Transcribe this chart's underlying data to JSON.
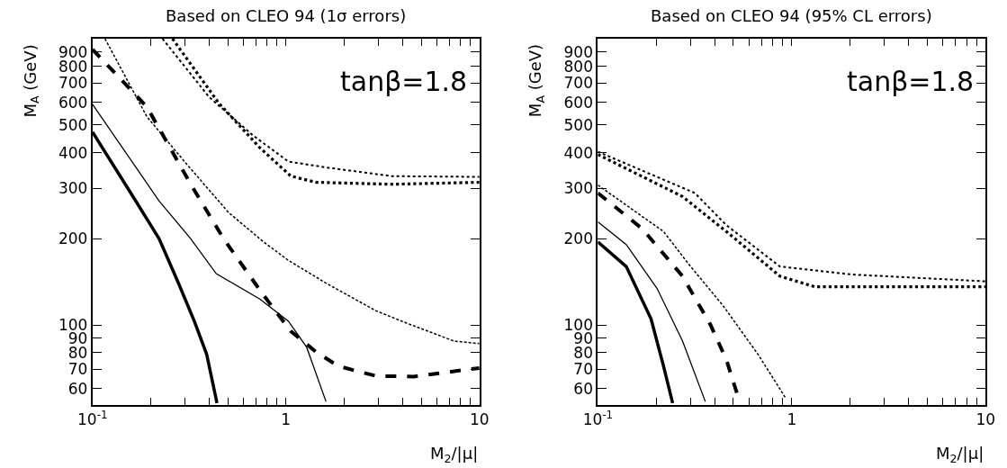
{
  "chart_data": [
    {
      "type": "line",
      "title": "Based on CLEO 94 (1σ errors)",
      "xlabel": "M$_{2}$/|μ|",
      "ylabel": "M$_{A}$ (GeV)",
      "log": "xy",
      "xlim": [
        0.1,
        10
      ],
      "ylim": [
        52.5,
        1000
      ],
      "xticks": [
        {
          "value": 0.1,
          "label": "10$^{-1}$"
        },
        {
          "value": 0.2,
          "label": null
        },
        {
          "value": 0.3,
          "label": null
        },
        {
          "value": 0.4,
          "label": null
        },
        {
          "value": 0.5,
          "label": null
        },
        {
          "value": 0.6,
          "label": null
        },
        {
          "value": 0.7,
          "label": null
        },
        {
          "value": 0.8,
          "label": null
        },
        {
          "value": 0.9,
          "label": null
        },
        1,
        {
          "value": 2,
          "label": null
        },
        {
          "value": 3,
          "label": null
        },
        {
          "value": 4,
          "label": null
        },
        {
          "value": 5,
          "label": null
        },
        {
          "value": 6,
          "label": null
        },
        {
          "value": 7,
          "label": null
        },
        {
          "value": 8,
          "label": null
        },
        {
          "value": 9,
          "label": null
        },
        10
      ],
      "yticks": [
        60,
        70,
        80,
        90,
        100,
        200,
        300,
        400,
        500,
        600,
        700,
        800,
        900
      ],
      "annotations": [
        "tanβ=1.8"
      ],
      "series": [
        {
          "color": "#000000",
          "line_style": "solid",
          "x": [
            0.1,
            0.165,
            0.221,
            0.278,
            0.336,
            0.389,
            0.44
          ],
          "values": [
            472,
            275,
            200,
            140,
            103,
            79,
            53.3
          ]
        },
        {
          "color": "#000000",
          "line_style": "solid",
          "x": [
            0.1,
            0.221,
            0.322,
            0.436,
            0.735,
            1.03,
            1.28,
            1.61
          ],
          "values": [
            590,
            271,
            200,
            151,
            123,
            103,
            83.5,
            54
          ]
        },
        {
          "color": "#000000",
          "line_style": "dashed",
          "x": [
            0.1,
            0.191,
            0.322,
            0.476,
            0.759,
            1.06,
            1.43,
            1.86,
            2.92,
            4.57,
            10
          ],
          "values": [
            918,
            578,
            310,
            200,
            128,
            95,
            80.5,
            71.8,
            66.3,
            66,
            70.7
          ]
        },
        {
          "color": "#000000",
          "line_style": "dashed",
          "x": [
            0.116,
            0.191,
            0.299,
            0.505,
            0.759,
            1.03,
            1.61,
            2.92,
            4.2,
            7.39,
            10
          ],
          "values": [
            1000,
            534,
            372,
            247,
            196,
            168,
            140,
            112,
            101.5,
            87.8,
            86
          ]
        },
        {
          "color": "#000000",
          "line_style": "dotted",
          "x": [
            0.23,
            0.401,
            0.676,
            1.03,
            1.66,
            3.52,
            10
          ],
          "values": [
            1000,
            625,
            459,
            372,
            354,
            331,
            329
          ]
        },
        {
          "color": "#000000",
          "line_style": "dotted",
          "x": [
            0.259,
            0.45,
            0.735,
            1.06,
            1.43,
            3.52,
            10
          ],
          "values": [
            1000,
            595,
            415,
            331,
            315,
            310,
            315
          ]
        }
      ]
    },
    {
      "type": "line",
      "title": "Based on CLEO 94 (95% CL errors)",
      "xlabel": "M$_{2}$/|μ|",
      "ylabel": "M$_{A}$ (GeV)",
      "log": "xy",
      "xlim": [
        0.1,
        10
      ],
      "ylim": [
        52.5,
        1000
      ],
      "xticks": [
        {
          "value": 0.1,
          "label": "10$^{-1}$"
        },
        {
          "value": 0.2,
          "label": null
        },
        {
          "value": 0.3,
          "label": null
        },
        {
          "value": 0.4,
          "label": null
        },
        {
          "value": 0.5,
          "label": null
        },
        {
          "value": 0.6,
          "label": null
        },
        {
          "value": 0.7,
          "label": null
        },
        {
          "value": 0.8,
          "label": null
        },
        {
          "value": 0.9,
          "label": null
        },
        1,
        {
          "value": 2,
          "label": null
        },
        {
          "value": 3,
          "label": null
        },
        {
          "value": 4,
          "label": null
        },
        {
          "value": 5,
          "label": null
        },
        {
          "value": 6,
          "label": null
        },
        {
          "value": 7,
          "label": null
        },
        {
          "value": 8,
          "label": null
        },
        {
          "value": 9,
          "label": null
        },
        10
      ],
      "yticks": [
        60,
        70,
        80,
        90,
        100,
        200,
        300,
        400,
        500,
        600,
        700,
        800,
        900
      ],
      "annotations": [
        "tanβ=1.8"
      ],
      "series": [
        {
          "color": "#000000",
          "line_style": "solid",
          "x": [
            0.1,
            0.14,
            0.188,
            0.218,
            0.243
          ],
          "values": [
            195,
            160,
            105,
            71.8,
            53.3
          ]
        },
        {
          "color": "#000000",
          "line_style": "solid",
          "x": [
            0.1,
            0.14,
            0.202,
            0.273,
            0.358
          ],
          "values": [
            229,
            191,
            134,
            88,
            54
          ]
        },
        {
          "color": "#000000",
          "line_style": "dashed",
          "x": [
            0.1,
            0.169,
            0.273,
            0.381,
            0.46,
            0.524
          ],
          "values": [
            289,
            217,
            148,
            100,
            75.5,
            57.1
          ]
        },
        {
          "color": "#000000",
          "line_style": "dashed",
          "x": [
            0.1,
            0.218,
            0.294,
            0.441,
            0.669,
            0.933
          ],
          "values": [
            308,
            212,
            163,
            117,
            79,
            55.3
          ]
        },
        {
          "color": "#000000",
          "line_style": "dotted",
          "x": [
            0.1,
            0.316,
            0.46,
            0.868,
            2.04,
            10
          ],
          "values": [
            403,
            289,
            223,
            160,
            150,
            142
          ]
        },
        {
          "color": "#000000",
          "line_style": "dotted",
          "x": [
            0.1,
            0.273,
            0.46,
            0.868,
            1.31,
            10
          ],
          "values": [
            394,
            281,
            212,
            148,
            136,
            136
          ]
        }
      ]
    }
  ]
}
